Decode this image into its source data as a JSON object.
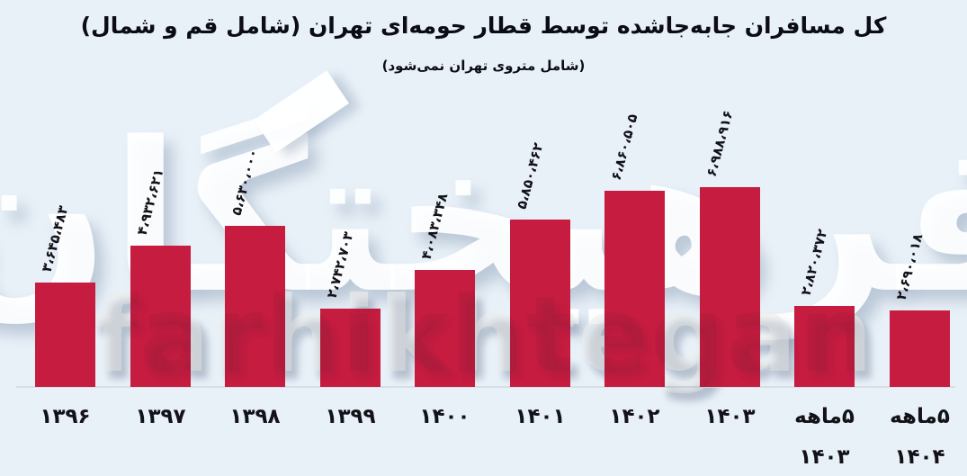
{
  "title": "کل مسافران جابه‌جاشده توسط قطار حومه‌ای تهران (شامل قم و شمال)",
  "subtitle": "(شامل متروی تهران نمی‌شود)",
  "watermark": {
    "persian": "فرهیختگان",
    "latin": "farhikhtegan"
  },
  "colors": {
    "background": "#e9f1f8",
    "bar": "#c51c40",
    "title_text": "#0c0c14",
    "label_text": "#121218",
    "axis_line": "#d8dee4"
  },
  "chart_data": {
    "type": "bar",
    "title": "کل مسافران جابه‌جاشده توسط قطار حومه‌ای تهران (شامل قم و شمال)",
    "subtitle": "(شامل متروی تهران نمی‌شود)",
    "categories": [
      "۱۳۹۶",
      "۱۳۹۷",
      "۱۳۹۸",
      "۱۳۹۹",
      "۱۴۰۰",
      "۱۴۰۱",
      "۱۴۰۲",
      "۱۴۰۳",
      "۵ماهه ۱۴۰۳",
      "۵ماهه ۱۴۰۴"
    ],
    "category_lines": [
      [
        "۱۳۹۶"
      ],
      [
        "۱۳۹۷"
      ],
      [
        "۱۳۹۸"
      ],
      [
        "۱۳۹۹"
      ],
      [
        "۱۴۰۰"
      ],
      [
        "۱۴۰۱"
      ],
      [
        "۱۴۰۲"
      ],
      [
        "۱۴۰۳"
      ],
      [
        "۵ماهه",
        "۱۴۰۳"
      ],
      [
        "۵ماهه",
        "۱۴۰۴"
      ]
    ],
    "values": [
      3645483,
      4932621,
      5630000,
      2742703,
      4083348,
      5850462,
      6860505,
      6988916,
      2820372,
      2690018
    ],
    "value_labels": [
      "۳،۶۴۵،۴۸۳",
      "۴،۹۳۲،۶۲۱",
      "۵،۶۳۰،۰۰۰",
      "۲،۷۴۲،۷۰۳",
      "۴،۰۸۳،۳۴۸",
      "۵،۸۵۰،۴۶۲",
      "۶،۸۶۰،۵۰۵",
      "۶،۹۸۸،۹۱۶",
      "۲،۸۲۰،۳۷۲",
      "۲،۶۹۰،۰۱۸"
    ],
    "xlabel": "",
    "ylabel": "",
    "ylim": [
      0,
      7300000
    ],
    "grid": false,
    "legend": null,
    "bar_color": "#c51c40",
    "value_label_rotation_deg": -75
  }
}
